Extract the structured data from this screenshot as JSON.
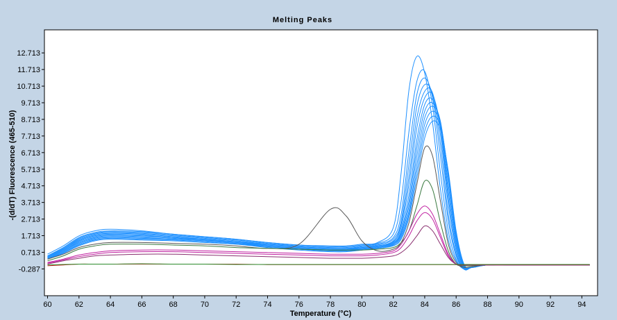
{
  "chart_data": {
    "type": "line",
    "title": "Melting Peaks",
    "xlabel": "Temperature (°C)",
    "ylabel": "-(d/dT) Fluorescence (465-510)",
    "xlim": [
      59.8,
      95.0
    ],
    "ylim": [
      -1.9,
      14.1
    ],
    "x_ticks": [
      60,
      62,
      64,
      66,
      68,
      70,
      72,
      74,
      76,
      78,
      80,
      82,
      84,
      86,
      88,
      90,
      92,
      94
    ],
    "x_tick_labels": [
      "60",
      "62",
      "64",
      "66",
      "68",
      "70",
      "72",
      "74",
      "76",
      "78",
      "80",
      "82",
      "84",
      "86",
      "88",
      "90",
      "92",
      "94"
    ],
    "y_ticks": [
      -0.287,
      0.713,
      1.713,
      2.713,
      3.713,
      4.713,
      5.713,
      6.713,
      7.713,
      8.713,
      9.713,
      10.713,
      11.713,
      12.713
    ],
    "y_tick_labels": [
      "-0.287",
      "0.713",
      "1.713",
      "2.713",
      "3.713",
      "4.713",
      "5.713",
      "6.713",
      "7.713",
      "8.713",
      "9.713",
      "10.713",
      "11.713",
      "12.713"
    ],
    "grid": false,
    "legend": "none",
    "x": [
      60,
      61,
      62,
      63,
      64,
      66,
      68,
      70,
      72,
      74,
      76,
      78,
      79,
      80,
      81,
      82,
      82.5,
      83,
      83.5,
      84,
      84.5,
      85,
      85.5,
      86,
      86.5,
      87,
      88,
      90,
      94.5
    ],
    "series": [
      {
        "color": "#1e90ff",
        "values": [
          0.6,
          1.1,
          1.7,
          2.0,
          2.1,
          2.0,
          1.8,
          1.65,
          1.5,
          1.3,
          1.15,
          1.1,
          1.1,
          1.2,
          1.3,
          2.2,
          5.5,
          10.5,
          12.5,
          11.5,
          8.5,
          4.5,
          1.5,
          0.2,
          -0.3,
          -0.2,
          -0.05,
          -0.05,
          -0.05
        ]
      },
      {
        "color": "#1e90ff",
        "values": [
          0.5,
          1.0,
          1.6,
          1.9,
          2.0,
          1.95,
          1.8,
          1.65,
          1.5,
          1.3,
          1.15,
          1.05,
          1.05,
          1.15,
          1.25,
          1.8,
          3.8,
          8.0,
          11.0,
          11.6,
          9.5,
          5.5,
          2.0,
          0.3,
          -0.3,
          -0.2,
          -0.05,
          -0.05,
          -0.05
        ]
      },
      {
        "color": "#1e90ff",
        "values": [
          0.5,
          0.95,
          1.55,
          1.85,
          1.95,
          1.9,
          1.75,
          1.6,
          1.45,
          1.25,
          1.1,
          1.0,
          1.0,
          1.1,
          1.2,
          1.6,
          3.0,
          6.8,
          10.2,
          11.2,
          10.0,
          6.5,
          2.6,
          0.5,
          -0.3,
          -0.2,
          -0.05,
          -0.05,
          -0.05
        ]
      },
      {
        "color": "#1e90ff",
        "values": [
          0.45,
          0.9,
          1.5,
          1.8,
          1.9,
          1.85,
          1.7,
          1.55,
          1.4,
          1.2,
          1.05,
          0.95,
          0.95,
          1.05,
          1.15,
          1.5,
          2.6,
          6.0,
          9.5,
          10.8,
          10.2,
          7.2,
          3.0,
          0.6,
          -0.3,
          -0.2,
          -0.05,
          -0.05,
          -0.05
        ]
      },
      {
        "color": "#1e90ff",
        "values": [
          0.45,
          0.9,
          1.45,
          1.75,
          1.85,
          1.8,
          1.65,
          1.5,
          1.35,
          1.2,
          1.05,
          0.95,
          0.95,
          1.0,
          1.1,
          1.4,
          2.4,
          5.3,
          8.8,
          10.4,
          10.3,
          7.8,
          3.6,
          0.8,
          -0.3,
          -0.2,
          -0.05,
          -0.05,
          -0.05
        ]
      },
      {
        "color": "#1e90ff",
        "values": [
          0.4,
          0.85,
          1.4,
          1.7,
          1.8,
          1.75,
          1.6,
          1.5,
          1.35,
          1.15,
          1.0,
          0.9,
          0.9,
          1.0,
          1.1,
          1.35,
          2.2,
          4.8,
          8.2,
          10.0,
          10.2,
          8.2,
          4.0,
          1.0,
          -0.25,
          -0.2,
          -0.05,
          -0.05,
          -0.05
        ]
      },
      {
        "color": "#1e90ff",
        "values": [
          0.4,
          0.8,
          1.35,
          1.65,
          1.75,
          1.7,
          1.6,
          1.45,
          1.3,
          1.15,
          1.0,
          0.9,
          0.9,
          0.95,
          1.05,
          1.3,
          2.0,
          4.2,
          7.5,
          9.6,
          9.9,
          8.3,
          4.4,
          1.2,
          -0.2,
          -0.2,
          -0.05,
          -0.05,
          -0.05
        ]
      },
      {
        "color": "#1e90ff",
        "values": [
          0.4,
          0.8,
          1.3,
          1.6,
          1.7,
          1.65,
          1.55,
          1.45,
          1.3,
          1.1,
          0.95,
          0.85,
          0.85,
          0.95,
          1.05,
          1.25,
          1.9,
          3.8,
          7.0,
          9.2,
          9.7,
          8.5,
          4.8,
          1.4,
          -0.2,
          -0.2,
          -0.05,
          -0.05,
          -0.05
        ]
      },
      {
        "color": "#1e90ff",
        "values": [
          0.35,
          0.75,
          1.25,
          1.55,
          1.65,
          1.6,
          1.5,
          1.4,
          1.25,
          1.1,
          0.95,
          0.85,
          0.85,
          0.9,
          1.0,
          1.2,
          1.8,
          3.5,
          6.5,
          8.8,
          9.5,
          8.6,
          5.2,
          1.6,
          -0.15,
          -0.2,
          -0.05,
          -0.05,
          -0.05
        ]
      },
      {
        "color": "#1e90ff",
        "values": [
          0.35,
          0.7,
          1.2,
          1.5,
          1.6,
          1.55,
          1.5,
          1.4,
          1.25,
          1.05,
          0.9,
          0.8,
          0.8,
          0.9,
          1.0,
          1.2,
          1.7,
          3.2,
          6.0,
          8.4,
          9.2,
          8.5,
          5.4,
          1.8,
          -0.1,
          -0.2,
          -0.05,
          -0.05,
          -0.05
        ]
      },
      {
        "color": "#1e90ff",
        "values": [
          0.3,
          0.7,
          1.15,
          1.45,
          1.55,
          1.5,
          1.45,
          1.35,
          1.2,
          1.05,
          0.9,
          0.8,
          0.8,
          0.85,
          0.95,
          1.15,
          1.6,
          3.0,
          5.6,
          8.0,
          8.9,
          8.3,
          5.5,
          1.9,
          -0.05,
          -0.2,
          -0.05,
          -0.05,
          -0.05
        ]
      },
      {
        "color": "#1e90ff",
        "values": [
          0.3,
          0.65,
          1.1,
          1.4,
          1.5,
          1.45,
          1.4,
          1.3,
          1.2,
          1.0,
          0.85,
          0.75,
          0.75,
          0.85,
          0.95,
          1.1,
          1.5,
          2.8,
          5.2,
          7.6,
          8.6,
          8.1,
          5.6,
          2.0,
          0.0,
          -0.2,
          -0.05,
          -0.05,
          -0.05
        ]
      },
      {
        "color": "#555555",
        "values": [
          0.3,
          0.6,
          1.0,
          1.2,
          1.3,
          1.3,
          1.25,
          1.2,
          1.1,
          0.95,
          1.2,
          3.3,
          2.9,
          1.4,
          0.8,
          0.9,
          1.3,
          2.5,
          4.8,
          7.0,
          6.5,
          3.8,
          1.2,
          0.1,
          -0.2,
          -0.15,
          -0.05,
          -0.05,
          -0.05
        ]
      },
      {
        "color": "#3a7a40",
        "values": [
          0.2,
          0.5,
          0.9,
          1.1,
          1.2,
          1.2,
          1.15,
          1.1,
          1.0,
          0.95,
          0.9,
          0.85,
          0.85,
          0.85,
          0.9,
          1.0,
          1.3,
          2.0,
          3.5,
          5.0,
          4.5,
          2.5,
          0.8,
          0.0,
          -0.1,
          -0.1,
          -0.05,
          -0.05,
          -0.05
        ]
      },
      {
        "color": "#c020a0",
        "values": [
          0.1,
          0.3,
          0.55,
          0.7,
          0.8,
          0.85,
          0.85,
          0.8,
          0.75,
          0.7,
          0.65,
          0.6,
          0.6,
          0.6,
          0.65,
          0.8,
          1.2,
          2.0,
          3.0,
          3.5,
          3.0,
          1.8,
          0.6,
          0.0,
          -0.05,
          -0.05,
          -0.05,
          -0.05,
          -0.05
        ]
      },
      {
        "color": "#c020a0",
        "values": [
          0.05,
          0.25,
          0.45,
          0.6,
          0.7,
          0.75,
          0.75,
          0.7,
          0.65,
          0.6,
          0.55,
          0.5,
          0.5,
          0.5,
          0.55,
          0.7,
          1.0,
          1.7,
          2.6,
          3.1,
          2.7,
          1.6,
          0.5,
          0.0,
          -0.05,
          -0.05,
          -0.05,
          -0.05,
          -0.05
        ]
      },
      {
        "color": "#8a3070",
        "values": [
          0.0,
          0.2,
          0.35,
          0.5,
          0.55,
          0.6,
          0.6,
          0.55,
          0.5,
          0.45,
          0.4,
          0.35,
          0.35,
          0.35,
          0.4,
          0.5,
          0.7,
          1.1,
          1.7,
          2.3,
          2.0,
          1.2,
          0.4,
          0.0,
          -0.05,
          -0.05,
          -0.05,
          -0.05,
          -0.05
        ]
      },
      {
        "color": "#d02020",
        "values": [
          -0.1,
          -0.05,
          0.0,
          0.0,
          0.0,
          0.0,
          0.0,
          0.0,
          0.0,
          -0.03,
          -0.03,
          -0.03,
          -0.03,
          -0.03,
          -0.03,
          -0.03,
          -0.03,
          -0.03,
          -0.03,
          -0.03,
          -0.03,
          -0.03,
          -0.03,
          -0.03,
          -0.03,
          -0.03,
          -0.03,
          -0.03,
          -0.03
        ]
      },
      {
        "color": "#2a8a2a",
        "values": [
          -0.05,
          -0.02,
          0.0,
          0.0,
          0.0,
          0.02,
          0.0,
          0.0,
          -0.02,
          -0.02,
          -0.02,
          -0.02,
          -0.02,
          -0.02,
          -0.02,
          -0.02,
          -0.02,
          -0.02,
          -0.02,
          -0.02,
          -0.02,
          -0.02,
          -0.02,
          -0.02,
          -0.02,
          -0.02,
          -0.02,
          -0.02,
          -0.02
        ]
      }
    ]
  }
}
